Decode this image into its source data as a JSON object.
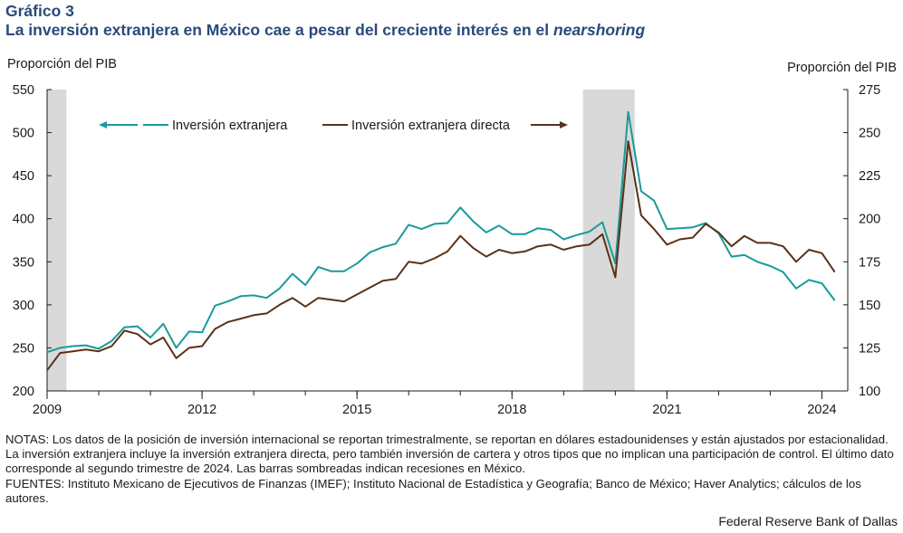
{
  "header": {
    "label": "Gráfico 3",
    "title_main": "La inversión extranjera en México cae a pesar del creciente interés en el ",
    "title_italic": "nearshoring"
  },
  "notes": {
    "notas": "NOTAS: Los datos de la posición de inversión internacional se reportan trimestralmente, se reportan en dólares estadounidenses y están ajustados por estacionalidad. La inversión extranjera incluye la inversión extranjera directa, pero también inversión de cartera y otros tipos que no implican una participación de control. El último dato corresponde al segundo trimestre de 2024. Las barras sombreadas indican recesiones en México.",
    "fuentes": "FUENTES: Instituto Mexicano de Ejecutivos de Finanzas (IMEF); Instituto Nacional de Estadística y Geografía; Banco de México; Haver Analytics; cálculos de los autores."
  },
  "credit": "Federal Reserve Bank of Dallas",
  "colors": {
    "series1": "#1a9a9a",
    "series2": "#5a3218",
    "recession": "#d9d9d9",
    "axis": "#1a1a1a"
  },
  "chart_data": {
    "type": "line",
    "ylabel_left": "Proporción del PIB",
    "ylabel_right": "Proporción del PIB",
    "ylim_left": [
      200,
      550
    ],
    "yticks_left": [
      200,
      250,
      300,
      350,
      400,
      450,
      500,
      550
    ],
    "ylim_right": [
      100,
      275
    ],
    "yticks_right": [
      100,
      125,
      150,
      175,
      200,
      225,
      250,
      275
    ],
    "xlim": [
      2009.0,
      2024.5
    ],
    "xticks": [
      "2009",
      "2012",
      "2015",
      "2018",
      "2021",
      "2024"
    ],
    "grid": false,
    "legend_placement": "top, inside plot",
    "recessions": [
      [
        2009.0,
        2009.375
      ],
      [
        2019.375,
        2020.375
      ]
    ],
    "x": [
      2009.0,
      2009.25,
      2009.5,
      2009.75,
      2010.0,
      2010.25,
      2010.5,
      2010.75,
      2011.0,
      2011.25,
      2011.5,
      2011.75,
      2012.0,
      2012.25,
      2012.5,
      2012.75,
      2013.0,
      2013.25,
      2013.5,
      2013.75,
      2014.0,
      2014.25,
      2014.5,
      2014.75,
      2015.0,
      2015.25,
      2015.5,
      2015.75,
      2016.0,
      2016.25,
      2016.5,
      2016.75,
      2017.0,
      2017.25,
      2017.5,
      2017.75,
      2018.0,
      2018.25,
      2018.5,
      2018.75,
      2019.0,
      2019.25,
      2019.5,
      2019.75,
      2020.0,
      2020.25,
      2020.5,
      2020.75,
      2021.0,
      2021.25,
      2021.5,
      2021.75,
      2022.0,
      2022.25,
      2022.5,
      2022.75,
      2023.0,
      2023.25,
      2023.5,
      2023.75,
      2024.0,
      2024.25
    ],
    "series": [
      {
        "name": "Inversión extranjera",
        "axis": "left",
        "arrow": "left",
        "values": [
          245,
          250,
          252,
          253,
          249,
          258,
          274,
          275,
          262,
          278,
          250,
          269,
          268,
          299,
          304,
          310,
          311,
          308,
          319,
          336,
          323,
          344,
          339,
          339,
          348,
          361,
          367,
          371,
          393,
          388,
          394,
          395,
          413,
          397,
          384,
          392,
          382,
          382,
          389,
          387,
          376,
          381,
          385,
          396,
          348,
          524,
          432,
          421,
          388,
          389,
          390,
          395,
          383,
          356,
          358,
          350,
          345,
          338,
          319,
          329,
          325,
          305
        ]
      },
      {
        "name": "Inversión extranjera directa",
        "axis": "right",
        "arrow": "right",
        "values": [
          112,
          122,
          123,
          124,
          123,
          126,
          135,
          133,
          127,
          131,
          119,
          125,
          126,
          136,
          140,
          142,
          144,
          145,
          150,
          154,
          149,
          154,
          153,
          152,
          156,
          160,
          164,
          165,
          175,
          174,
          177,
          181,
          190,
          183,
          178,
          182,
          180,
          181,
          184,
          185,
          182,
          184,
          185,
          191,
          166,
          245,
          202,
          194,
          185,
          188,
          189,
          197,
          192,
          184,
          190,
          186,
          186,
          184,
          175,
          182,
          180,
          169
        ]
      }
    ]
  }
}
